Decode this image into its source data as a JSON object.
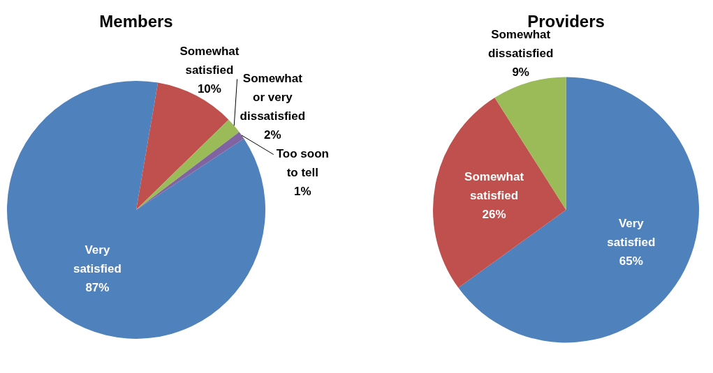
{
  "chart_data": [
    {
      "type": "pie",
      "title": "Members",
      "categories": [
        "Very satisfied",
        "Somewhat satisfied",
        "Somewhat or very dissatisfied",
        "Too soon to tell"
      ],
      "values": [
        87,
        10,
        2,
        1
      ],
      "colors": [
        "#4f81bd",
        "#c0504d",
        "#9bbb59",
        "#8064a2"
      ],
      "value_labels": [
        "87%",
        "10%",
        "2%",
        "1%"
      ]
    },
    {
      "type": "pie",
      "title": "Providers",
      "categories": [
        "Very satisfied",
        "Somewhat satisfied",
        "Somewhat dissatisfied"
      ],
      "values": [
        65,
        26,
        9
      ],
      "colors": [
        "#4f81bd",
        "#c0504d",
        "#9bbb59"
      ],
      "value_labels": [
        "65%",
        "26%",
        "9%"
      ]
    }
  ]
}
